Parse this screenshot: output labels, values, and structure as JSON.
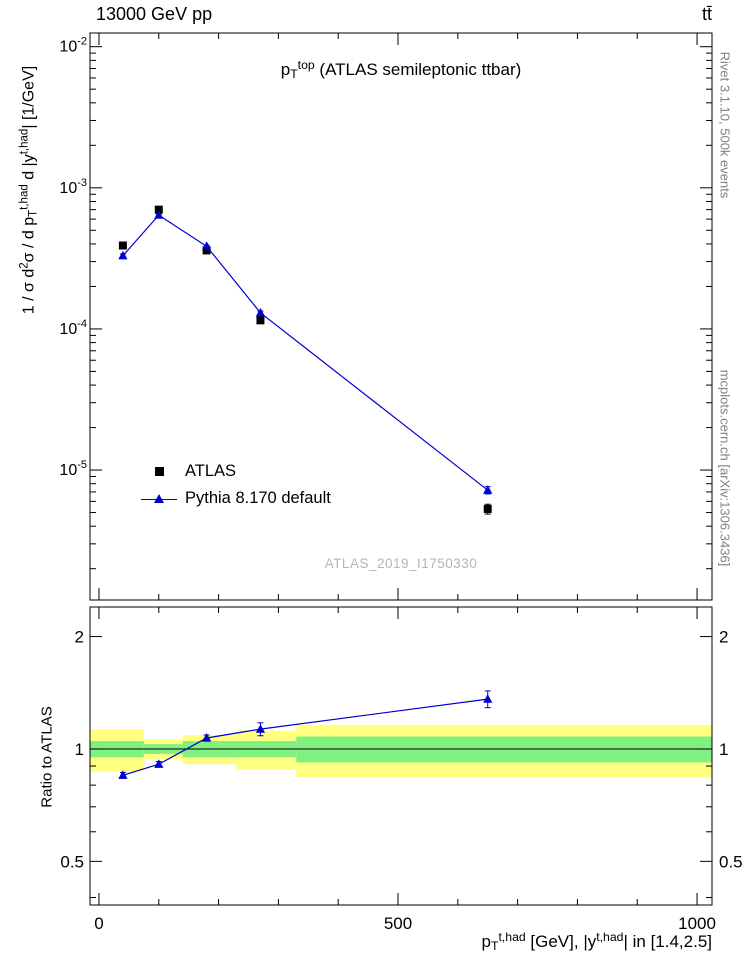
{
  "header": {
    "left": "13000 GeV pp",
    "right": "tt̄"
  },
  "side_notes": {
    "top": "Rivet 3.1.10,  500k events",
    "bottom": "mcplots.cern.ch [arXiv:1306.3436]"
  },
  "titles": {
    "plot_title": [
      {
        "t": "p"
      },
      {
        "sub": "T"
      },
      {
        "sup": "top"
      },
      {
        "t": " (ATLAS semileptonic ttbar)"
      }
    ],
    "y_main": [
      {
        "t": "1 / σ d"
      },
      {
        "sup": "2"
      },
      {
        "t": "σ / d p"
      },
      {
        "sub": "T"
      },
      {
        "sup": "t,had"
      },
      {
        "t": " d |y"
      },
      {
        "sup": "t,had"
      },
      {
        "t": "| [1/GeV]"
      }
    ],
    "y_ratio": "Ratio to ATLAS",
    "x_axis": [
      {
        "t": "p"
      },
      {
        "sub": "T"
      },
      {
        "sup": "t,had"
      },
      {
        "t": " [GeV], |y"
      },
      {
        "sup": "t,had"
      },
      {
        "t": "| in [1.4,2.5]"
      }
    ],
    "watermark": "ATLAS_2019_I1750330"
  },
  "legend": [
    {
      "label": "ATLAS",
      "marker": "square",
      "color": "#000000"
    },
    {
      "label": "Pythia 8.170 default",
      "marker": "triangle-line",
      "color": "#0000cc"
    }
  ],
  "chart_data": {
    "type": "line",
    "title": "pT^top (ATLAS semileptonic ttbar)",
    "xlabel": "pT^{t,had} [GeV], |y^{t,had}| in [1.4,2.5]",
    "ylabel": "1/sigma d^2sigma / dpT^{t,had} d|y^{t,had}| [1/GeV]",
    "x_ticks": {
      "range": [
        0,
        1000
      ],
      "minor_step": 100,
      "major": [
        0,
        500,
        1000
      ],
      "labels": [
        "0",
        "500",
        "1000"
      ]
    },
    "panels": [
      {
        "name": "spectrum",
        "yscale": "log",
        "xlim": [
          -15,
          1025
        ],
        "ylim": [
          1.2e-06,
          0.0125
        ],
        "pow_labels": true,
        "series": [
          {
            "name": "ATLAS",
            "marker": "square",
            "color": "#000000",
            "line": false,
            "x": [
              40,
              100,
              180,
              270,
              650
            ],
            "y": [
              0.00039,
              0.0007,
              0.00036,
              0.000115,
              5.3e-06
            ],
            "yerr_rel": [
              0.05,
              0.03,
              0.03,
              0.05,
              0.08
            ]
          },
          {
            "name": "Pythia 8.170 default",
            "marker": "triangle",
            "color": "#0000cc",
            "line": true,
            "x": [
              40,
              100,
              180,
              270,
              650
            ],
            "y": [
              0.00033,
              0.00064,
              0.000385,
              0.00013,
              7.2e-06
            ],
            "yerr_rel": [
              0.03,
              0.02,
              0.02,
              0.03,
              0.06
            ]
          }
        ]
      },
      {
        "name": "ratio",
        "yscale": "log",
        "xlim": [
          -15,
          1025
        ],
        "ylim": [
          0.382,
          2.4
        ],
        "major_values": [
          0.5,
          1,
          2
        ],
        "tick_labels": [
          {
            "v": 2,
            "label": "2"
          },
          {
            "v": 1,
            "label": "1"
          },
          {
            "v": 0.5,
            "label": "0.5"
          }
        ],
        "x_labels": true,
        "ref_line": 1,
        "bands": {
          "edges": [
            -15,
            75,
            140,
            230,
            330,
            1025
          ],
          "yellow_color": "#ffff80",
          "green_color": "#80f080",
          "yellow": [
            [
              0.87,
              1.13
            ],
            [
              0.94,
              1.06
            ],
            [
              0.91,
              1.09
            ],
            [
              0.88,
              1.12
            ],
            [
              0.84,
              1.16
            ]
          ],
          "green": [
            [
              0.95,
              1.05
            ],
            [
              0.97,
              1.03
            ],
            [
              0.95,
              1.05
            ],
            [
              0.95,
              1.05
            ],
            [
              0.92,
              1.08
            ]
          ]
        },
        "series": [
          {
            "name": "Pythia/ATLAS",
            "marker": "triangle",
            "color": "#0000cc",
            "line": true,
            "x": [
              40,
              100,
              180,
              270,
              650
            ],
            "y": [
              0.85,
              0.91,
              1.07,
              1.13,
              1.36
            ],
            "yerr": [
              0.015,
              0.015,
              0.02,
              0.045,
              0.07
            ]
          }
        ]
      }
    ]
  }
}
